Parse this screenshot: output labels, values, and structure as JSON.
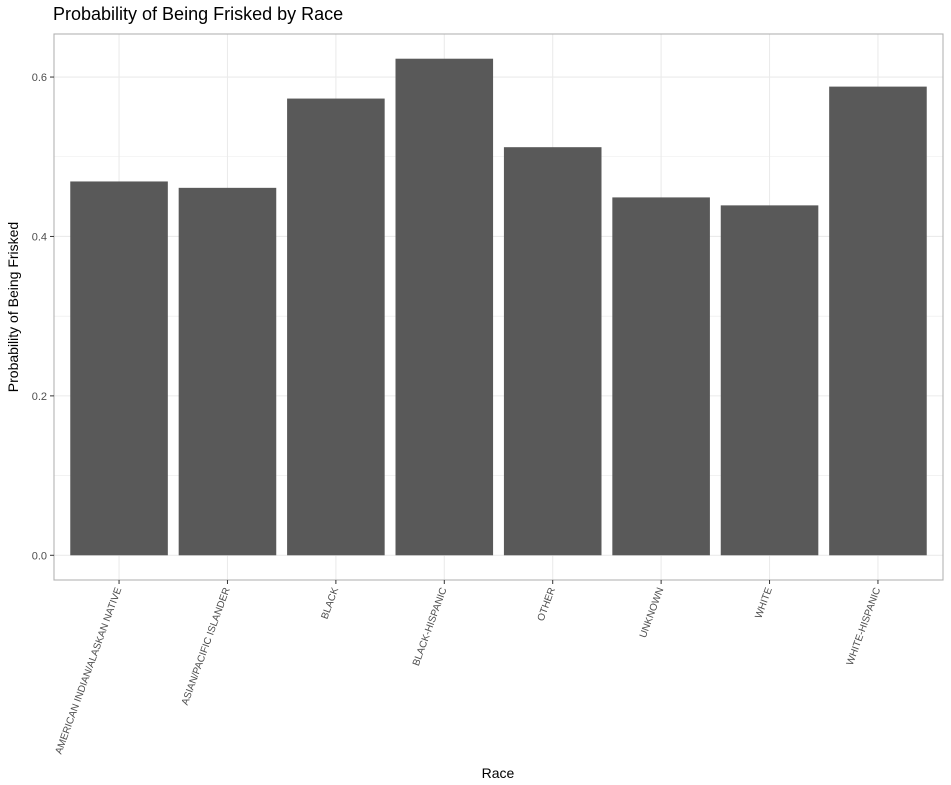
{
  "chart_data": {
    "type": "bar",
    "title": "Probability of Being Frisked by Race",
    "xlabel": "Race",
    "ylabel": "Probability of Being Frisked",
    "categories": [
      "AMERICAN INDIAN/ALASKAN NATIVE",
      "ASIAN/PACIFIC ISLANDER",
      "BLACK",
      "BLACK-HISPANIC",
      "OTHER",
      "UNKNOWN",
      "WHITE",
      "WHITE-HISPANIC"
    ],
    "values": [
      0.469,
      0.461,
      0.573,
      0.623,
      0.512,
      0.449,
      0.439,
      0.588
    ],
    "ylim": [
      -0.031,
      0.654
    ],
    "yticks": [
      0.0,
      0.2,
      0.4,
      0.6
    ],
    "ytick_labels": [
      "0.0",
      "0.2",
      "0.4",
      "0.6"
    ],
    "grid": true,
    "bar_color": "#595959",
    "grid_color": "#ebebeb",
    "panel_border_color": "#b3b3b3"
  }
}
